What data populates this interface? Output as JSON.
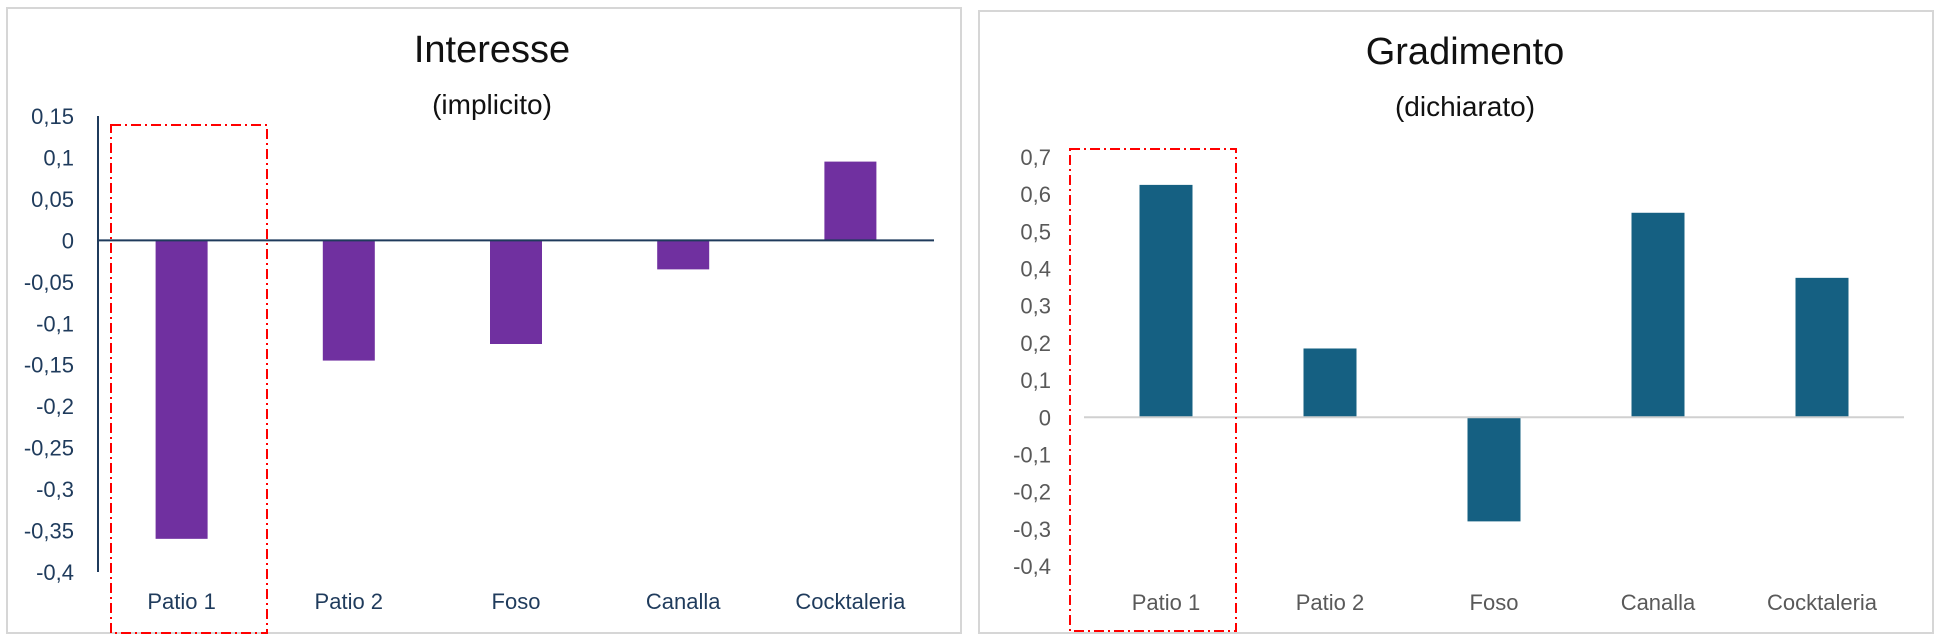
{
  "chart_data": [
    {
      "type": "bar",
      "title": "Interesse",
      "subtitle": "(implicito)",
      "categories": [
        "Patio 1",
        "Patio 2",
        "Foso",
        "Canalla",
        "Cocktaleria"
      ],
      "values": [
        -0.36,
        -0.145,
        -0.125,
        -0.035,
        0.095
      ],
      "ylim": [
        -0.4,
        0.15
      ],
      "yticks": [
        0.15,
        0.1,
        0.05,
        0,
        -0.05,
        -0.1,
        -0.15,
        -0.2,
        -0.25,
        -0.3,
        -0.35,
        -0.4
      ],
      "ytick_labels": [
        "0,15",
        "0,1",
        "0,05",
        "0",
        "-0,05",
        "-0,1",
        "-0,15",
        "-0,2",
        "-0,25",
        "-0,3",
        "-0,35",
        "-0,4"
      ],
      "bar_color": "#7030a0",
      "axis_color": "#1f3b5c",
      "label_color": "#1f3b5c",
      "highlight_category": "Patio 1",
      "highlight_color": "#ff0000",
      "grid": false,
      "legend": "none"
    },
    {
      "type": "bar",
      "title": "Gradimento",
      "subtitle": "(dichiarato)",
      "categories": [
        "Patio 1",
        "Patio 2",
        "Foso",
        "Canalla",
        "Cocktaleria"
      ],
      "values": [
        0.625,
        0.185,
        -0.28,
        0.55,
        0.375
      ],
      "ylim": [
        -0.4,
        0.7
      ],
      "yticks": [
        0.7,
        0.6,
        0.5,
        0.4,
        0.3,
        0.2,
        0.1,
        0,
        -0.1,
        -0.2,
        -0.3,
        -0.4
      ],
      "ytick_labels": [
        "0,7",
        "0,6",
        "0,5",
        "0,4",
        "0,3",
        "0,2",
        "0,1",
        "0",
        "-0,1",
        "-0,2",
        "-0,3",
        "-0,4"
      ],
      "bar_color": "#156082",
      "axis_color": "#d0d0d0",
      "label_color": "#595959",
      "highlight_category": "Patio 1",
      "highlight_color": "#ff0000",
      "grid": false,
      "legend": "none"
    }
  ]
}
